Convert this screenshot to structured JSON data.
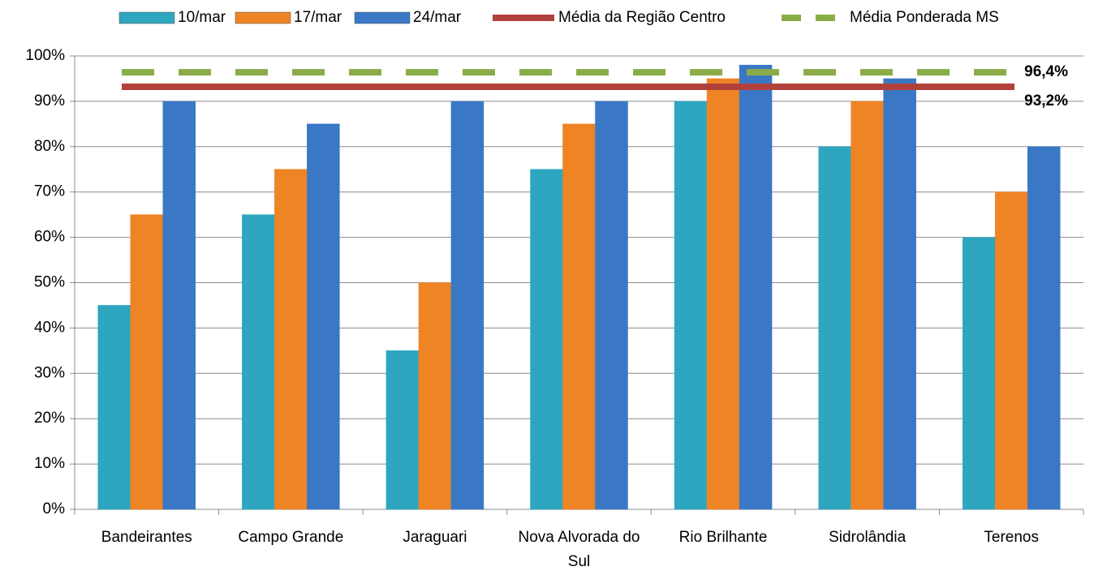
{
  "chart_data": {
    "type": "bar",
    "categories": [
      "Bandeirantes",
      "Campo Grande",
      "Jaraguari",
      "Nova Alvorada do Sul",
      "Rio Brilhante",
      "Sidrolândia",
      "Terenos"
    ],
    "series": [
      {
        "name": "10/mar",
        "color": "#2fa6bf",
        "values": [
          45,
          65,
          35,
          75,
          90,
          80,
          60
        ]
      },
      {
        "name": "17/mar",
        "color": "#ef8424",
        "values": [
          65,
          75,
          50,
          85,
          95,
          90,
          70
        ]
      },
      {
        "name": "24/mar",
        "color": "#3a78c6",
        "values": [
          90,
          85,
          90,
          90,
          98,
          95,
          80
        ]
      }
    ],
    "reference_lines": [
      {
        "name": "Média da Região Centro",
        "color": "#b2403b",
        "style": "solid",
        "value": 93.2,
        "value_label": "93,2%"
      },
      {
        "name": "Média Ponderada MS",
        "color": "#8aac48",
        "style": "dashed",
        "value": 96.4,
        "value_label": "96,4%"
      }
    ],
    "ylim": [
      0,
      100
    ],
    "yticks": [
      {
        "value": 0,
        "label": "0%"
      },
      {
        "value": 10,
        "label": "10%"
      },
      {
        "value": 20,
        "label": "20%"
      },
      {
        "value": 30,
        "label": "30%"
      },
      {
        "value": 40,
        "label": "40%"
      },
      {
        "value": 50,
        "label": "50%"
      },
      {
        "value": 60,
        "label": "60%"
      },
      {
        "value": 70,
        "label": "70%"
      },
      {
        "value": 80,
        "label": "80%"
      },
      {
        "value": 90,
        "label": "90%"
      },
      {
        "value": 100,
        "label": "100%"
      }
    ],
    "grid": true
  }
}
